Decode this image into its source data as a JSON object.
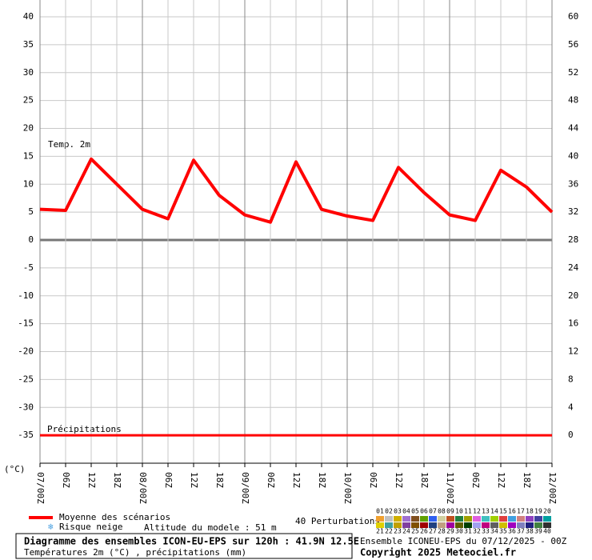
{
  "chart_data": {
    "type": "line",
    "title": "Diagramme des ensembles ICON-EU-EPS sur 120h : 41.9N 12.5E",
    "subtitle": "Températures 2m (°C) , précipitations (mm)",
    "run_info": "Ensemble ICONEU-EPS du 07/12/2025 - 00Z",
    "copyright": "Copyright 2025 Meteociel.fr",
    "temp_label": "Temp. 2m",
    "precip_label": "Précipitations",
    "y_unit": "(°C)",
    "altitude": "Altitude du modele : 51 m",
    "snow_risk": "Risque neige",
    "perturbations_label": "40 Perturbations",
    "perturbation_ids": [
      "01",
      "02",
      "03",
      "04",
      "05",
      "06",
      "07",
      "08",
      "09",
      "10",
      "11",
      "12",
      "13",
      "14",
      "15",
      "16",
      "17",
      "18",
      "19",
      "20",
      "21",
      "22",
      "23",
      "24",
      "25",
      "26",
      "27",
      "28",
      "29",
      "30",
      "31",
      "32",
      "33",
      "34",
      "35",
      "36",
      "37",
      "38",
      "39",
      "40"
    ],
    "perturbation_colors": [
      "#f0a030",
      "#c0c0c0",
      "#d0b000",
      "#a070d0",
      "#805020",
      "#60a000",
      "#3060f0",
      "#d0d0a0",
      "#c05020",
      "#208040",
      "#a0a000",
      "#e060e0",
      "#40c0c0",
      "#a0d000",
      "#e04040",
      "#40a0e0",
      "#d08080",
      "#9040c0",
      "#4040a0",
      "#00a0a0",
      "#e0d000",
      "#40a0a0",
      "#c0a000",
      "#8040a0",
      "#805000",
      "#a00000",
      "#204080",
      "#c0a080",
      "#a000a0",
      "#606000",
      "#004000",
      "#a0a0f0",
      "#c00080",
      "#606060",
      "#d0c000",
      "#a000c0",
      "#8080c0",
      "#202080",
      "#408040",
      "#303030"
    ],
    "xticks": [
      {
        "value": 0,
        "label": "07/00Z"
      },
      {
        "value": 6,
        "label": "06Z"
      },
      {
        "value": 12,
        "label": "12Z"
      },
      {
        "value": 18,
        "label": "18Z"
      },
      {
        "value": 24,
        "label": "08/00Z"
      },
      {
        "value": 30,
        "label": "06Z"
      },
      {
        "value": 36,
        "label": "12Z"
      },
      {
        "value": 42,
        "label": "18Z"
      },
      {
        "value": 48,
        "label": "09/00Z"
      },
      {
        "value": 54,
        "label": "06Z"
      },
      {
        "value": 60,
        "label": "12Z"
      },
      {
        "value": 66,
        "label": "18Z"
      },
      {
        "value": 72,
        "label": "10/00Z"
      },
      {
        "value": 78,
        "label": "06Z"
      },
      {
        "value": 84,
        "label": "12Z"
      },
      {
        "value": 90,
        "label": "18Z"
      },
      {
        "value": 96,
        "label": "11/00Z"
      },
      {
        "value": 102,
        "label": "06Z"
      },
      {
        "value": 108,
        "label": "12Z"
      },
      {
        "value": 114,
        "label": "18Z"
      },
      {
        "value": 120,
        "label": "12/00Z"
      }
    ],
    "xlim": [
      0,
      120
    ],
    "ylim": [
      -40,
      40
    ],
    "yticks": [
      -35,
      -30,
      -25,
      -20,
      -15,
      -10,
      -5,
      0,
      5,
      10,
      15,
      20,
      25,
      30,
      35,
      40
    ],
    "y2lim": [
      -4,
      60
    ],
    "y2ticks": [
      0,
      4,
      8,
      12,
      16,
      20,
      24,
      28,
      32,
      36,
      40,
      44,
      48,
      52,
      56,
      60
    ],
    "grid": true,
    "x": [
      0,
      6,
      12,
      18,
      24,
      30,
      36,
      42,
      48,
      54,
      60,
      66,
      72,
      78,
      84,
      90,
      96,
      102,
      108,
      114,
      120
    ],
    "series": [
      {
        "name": "Moyenne des scénarios",
        "color": "#ff0000",
        "values": [
          5.5,
          5.3,
          14.5,
          10,
          5.5,
          3.8,
          14.3,
          8,
          4.5,
          3.2,
          14,
          5.5,
          4.3,
          3.5,
          13,
          8.5,
          4.5,
          3.5,
          12.5,
          9.5,
          5
        ]
      },
      {
        "name": "Précipitations",
        "color": "#ff0000",
        "axis": "y2",
        "values": [
          0,
          0,
          0,
          0,
          0,
          0,
          0,
          0,
          0,
          0,
          0,
          0,
          0,
          0,
          0,
          0,
          0,
          0,
          0,
          0,
          0
        ]
      }
    ]
  }
}
